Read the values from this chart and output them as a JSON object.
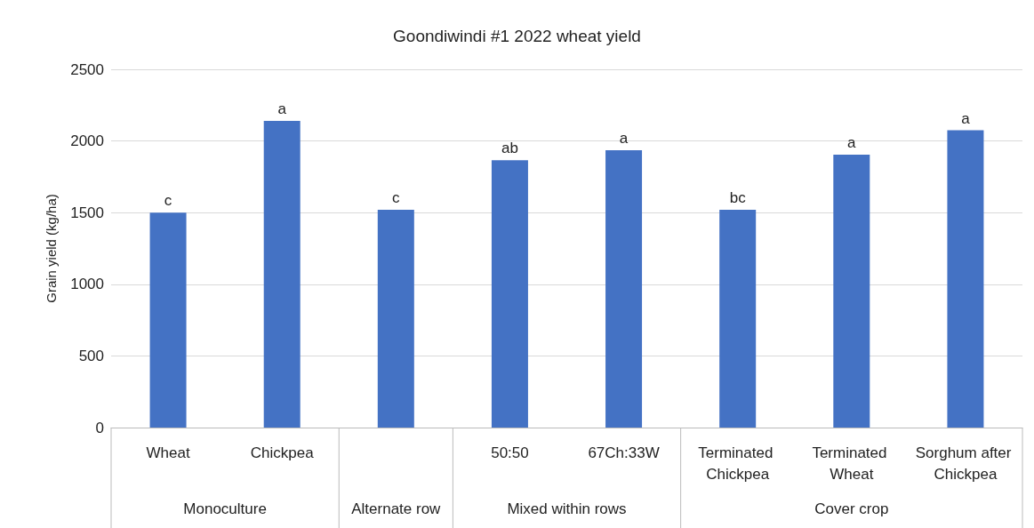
{
  "chart_data": {
    "type": "bar",
    "title": "Goondiwindi #1 2022 wheat yield",
    "ylabel": "Grain yield (kg/ha)",
    "categories": [
      "Wheat",
      "Chickpea",
      null,
      "50:50",
      "67Ch:33W",
      "Terminated Chickpea",
      "Terminated Wheat",
      "Sorghum after Chickpea"
    ],
    "values": [
      1500,
      2140,
      1520,
      1865,
      1935,
      1520,
      1905,
      2075
    ],
    "value_labels": [
      "c",
      "a",
      "c",
      "ab",
      "a",
      "bc",
      "a",
      "a"
    ],
    "color": "#4472c4",
    "ylim": [
      0,
      2500
    ],
    "yticks": [
      0,
      500,
      1000,
      1500,
      2000,
      2500
    ],
    "grid": "y",
    "annotations": [
      "Monoculture",
      "Alternate row",
      "Mixed within rows",
      "Cover crop"
    ]
  }
}
